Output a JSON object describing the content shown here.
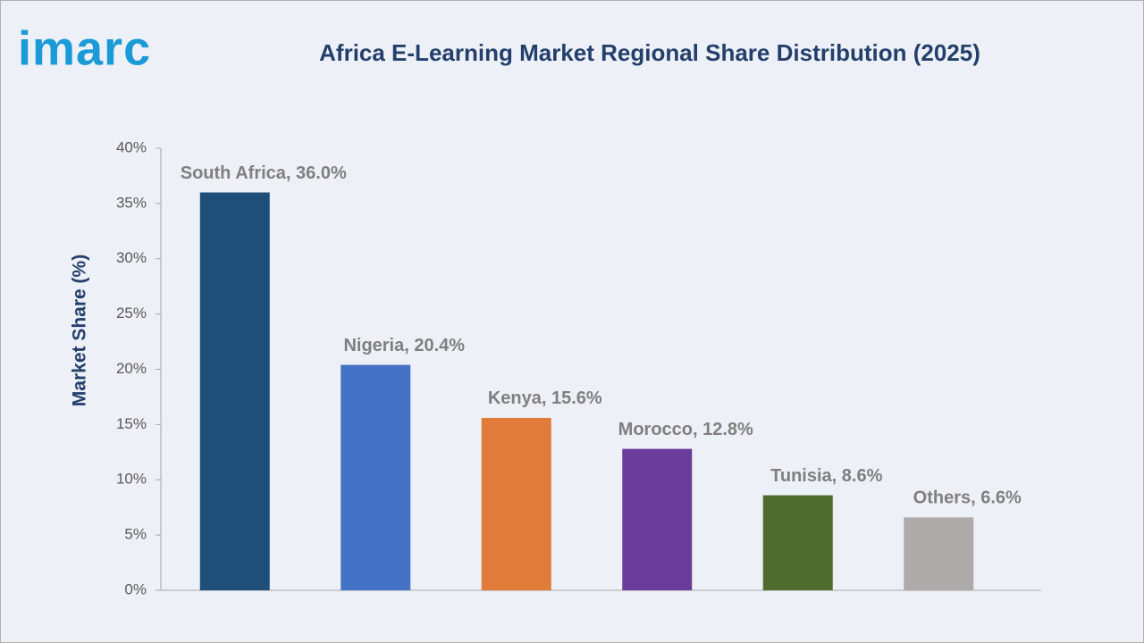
{
  "logo": "imarc",
  "chart_data": {
    "type": "bar",
    "title": "Africa E-Learning Market Regional Share Distribution (2025)",
    "y_label": "Market Share (%)",
    "values": [
      36.0,
      20.4,
      15.6,
      12.8,
      8.6,
      6.6
    ],
    "value_labels": [
      "South Africa, 36.0%",
      "Nigeria, 20.4%",
      "Kenya, 15.6%",
      "Morocco, 12.8%",
      "Tunisia, 8.6%",
      "Others, 6.6%"
    ],
    "colors": [
      "#1f4e79",
      "#4472c4",
      "#e07b39",
      "#6a3d9a",
      "#4f6b2f",
      "#aeaaaa"
    ],
    "ylim": [
      0,
      40
    ],
    "yticks": [
      {
        "value": 0,
        "label": "0%"
      },
      {
        "value": 5,
        "label": "5%"
      },
      {
        "value": 10,
        "label": "10%"
      },
      {
        "value": 15,
        "label": "15%"
      },
      {
        "value": 20,
        "label": "20%"
      },
      {
        "value": 25,
        "label": "25%"
      },
      {
        "value": 30,
        "label": "30%"
      },
      {
        "value": 35,
        "label": "35%"
      },
      {
        "value": 40,
        "label": "40%"
      }
    ],
    "grid": false
  }
}
